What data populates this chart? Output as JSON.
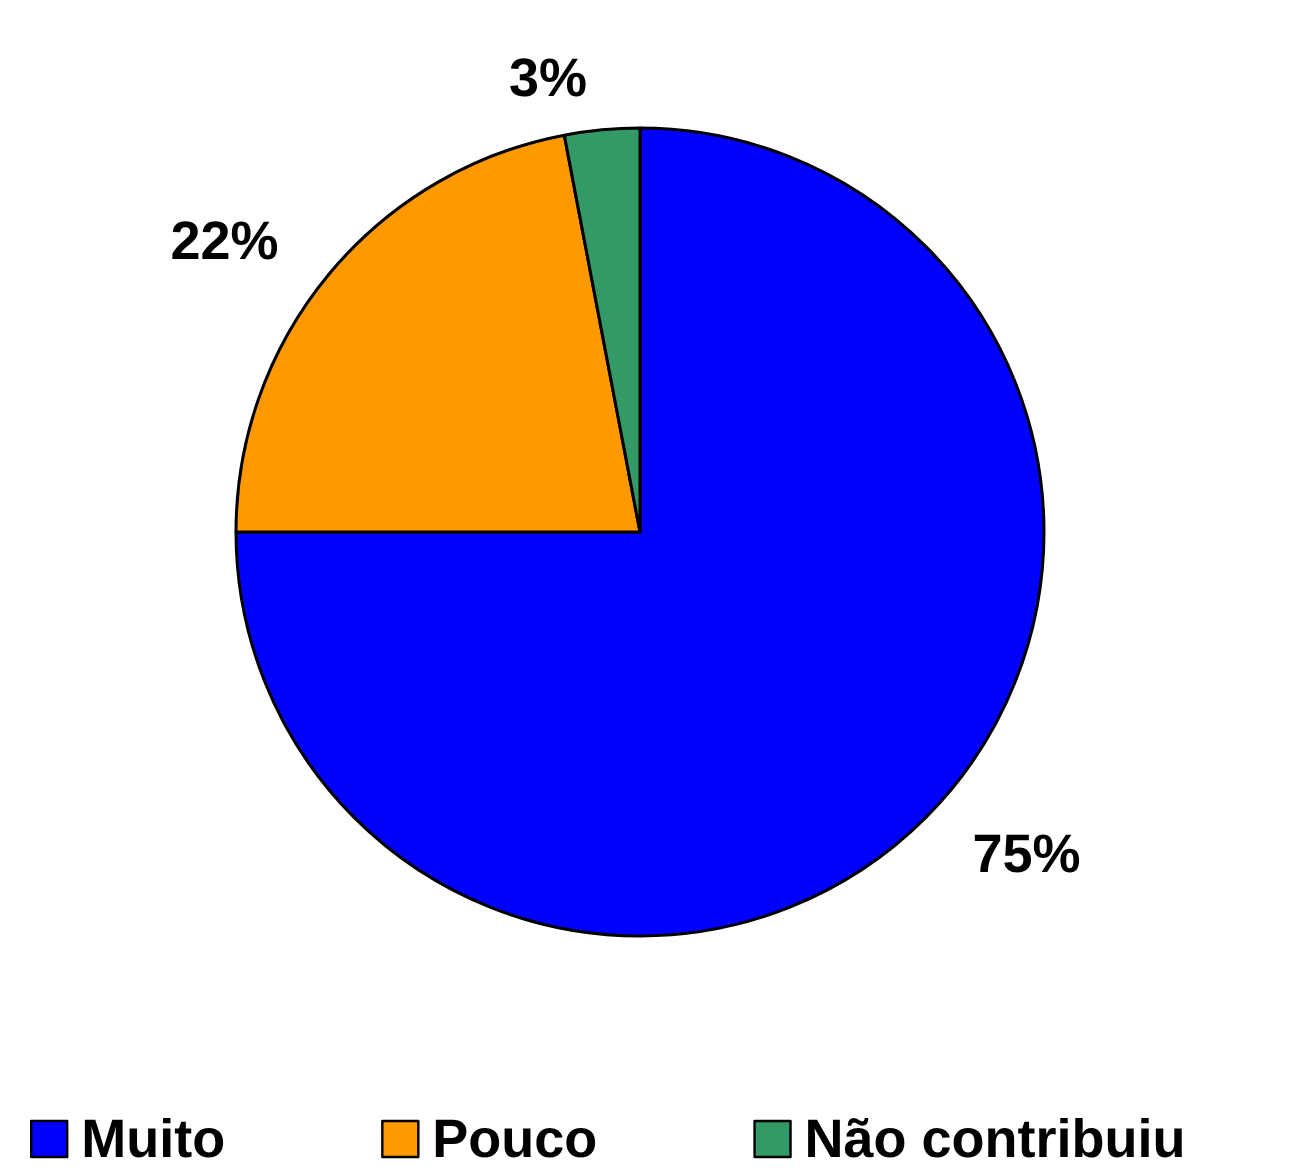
{
  "chart_data": {
    "type": "pie",
    "categories": [
      "Muito",
      "Pouco",
      "Não contribuiu"
    ],
    "values": [
      75,
      22,
      3
    ],
    "colors": [
      "#0000ff",
      "#ff9900",
      "#339966"
    ],
    "value_labels": [
      "75%",
      "22%",
      "3%"
    ],
    "legend": "bottom"
  }
}
